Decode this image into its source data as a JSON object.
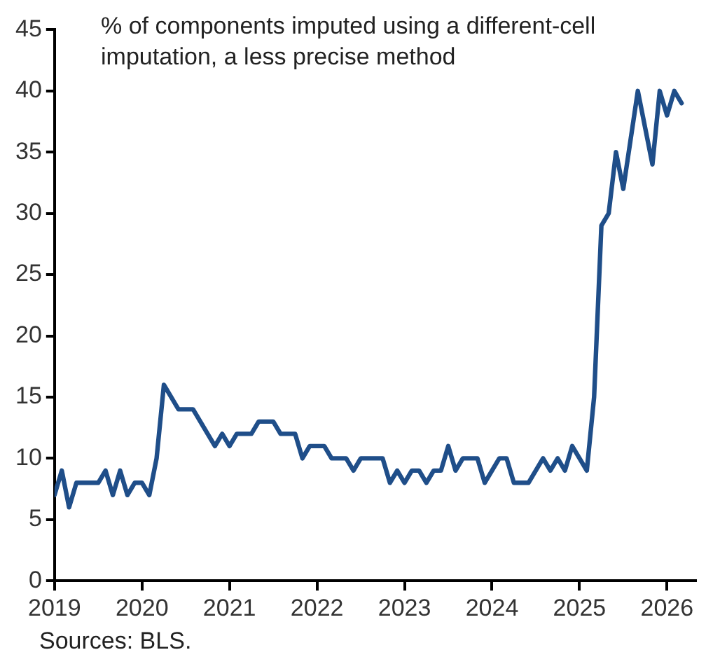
{
  "chart_data": {
    "type": "line",
    "title": "% of components imputed using a different-cell imputation, a less precise method",
    "annotations": [
      "Sources: BLS."
    ],
    "x": [
      "2019-01",
      "2019-02",
      "2019-03",
      "2019-04",
      "2019-05",
      "2019-06",
      "2019-07",
      "2019-08",
      "2019-09",
      "2019-10",
      "2019-11",
      "2019-12",
      "2020-01",
      "2020-02",
      "2020-03",
      "2020-04",
      "2020-05",
      "2020-06",
      "2020-07",
      "2020-08",
      "2020-09",
      "2020-10",
      "2020-11",
      "2020-12",
      "2021-01",
      "2021-02",
      "2021-03",
      "2021-04",
      "2021-05",
      "2021-06",
      "2021-07",
      "2021-08",
      "2021-09",
      "2021-10",
      "2021-11",
      "2021-12",
      "2022-01",
      "2022-02",
      "2022-03",
      "2022-04",
      "2022-05",
      "2022-06",
      "2022-07",
      "2022-08",
      "2022-09",
      "2022-10",
      "2022-11",
      "2022-12",
      "2023-01",
      "2023-02",
      "2023-03",
      "2023-04",
      "2023-05",
      "2023-06",
      "2023-07",
      "2023-08",
      "2023-09",
      "2023-10",
      "2023-11",
      "2023-12",
      "2024-01",
      "2024-02",
      "2024-03",
      "2024-04",
      "2024-05",
      "2024-06",
      "2024-07",
      "2024-08",
      "2024-09",
      "2024-10",
      "2024-11",
      "2024-12",
      "2025-01",
      "2025-02",
      "2025-03",
      "2025-04",
      "2025-05",
      "2025-06",
      "2025-07",
      "2025-08",
      "2025-09",
      "2025-10",
      "2025-11",
      "2025-12",
      "2026-01",
      "2026-02",
      "2026-03"
    ],
    "series": [
      {
        "color": "#1f4e89",
        "values": [
          7,
          9,
          6,
          8,
          8,
          8,
          8,
          9,
          7,
          9,
          7,
          8,
          8,
          7,
          10,
          16,
          15,
          14,
          14,
          14,
          13,
          12,
          11,
          12,
          11,
          12,
          12,
          12,
          13,
          13,
          13,
          12,
          12,
          12,
          10,
          11,
          11,
          11,
          10,
          10,
          10,
          9,
          10,
          10,
          10,
          10,
          8,
          9,
          8,
          9,
          9,
          8,
          9,
          9,
          11,
          9,
          10,
          10,
          10,
          8,
          9,
          10,
          10,
          8,
          8,
          8,
          9,
          10,
          9,
          10,
          9,
          11,
          10,
          9,
          15,
          29,
          30,
          35,
          32,
          36,
          40,
          37,
          34,
          40,
          38,
          40,
          39
        ]
      }
    ],
    "xlim": [
      "2019-01",
      "2026-05"
    ],
    "xticks": [
      {
        "value": "2019-01",
        "label": "2019"
      },
      {
        "value": "2020-01",
        "label": "2020"
      },
      {
        "value": "2021-01",
        "label": "2021"
      },
      {
        "value": "2022-01",
        "label": "2022"
      },
      {
        "value": "2023-01",
        "label": "2023"
      },
      {
        "value": "2024-01",
        "label": "2024"
      },
      {
        "value": "2025-01",
        "label": "2025"
      },
      {
        "value": "2026-01",
        "label": "2026"
      }
    ],
    "ylim": [
      0,
      45
    ],
    "yticks": [
      0,
      5,
      10,
      15,
      20,
      25,
      30,
      35,
      40,
      45
    ],
    "grid": false,
    "legend": false,
    "marker": "none",
    "line_style": "solid"
  }
}
